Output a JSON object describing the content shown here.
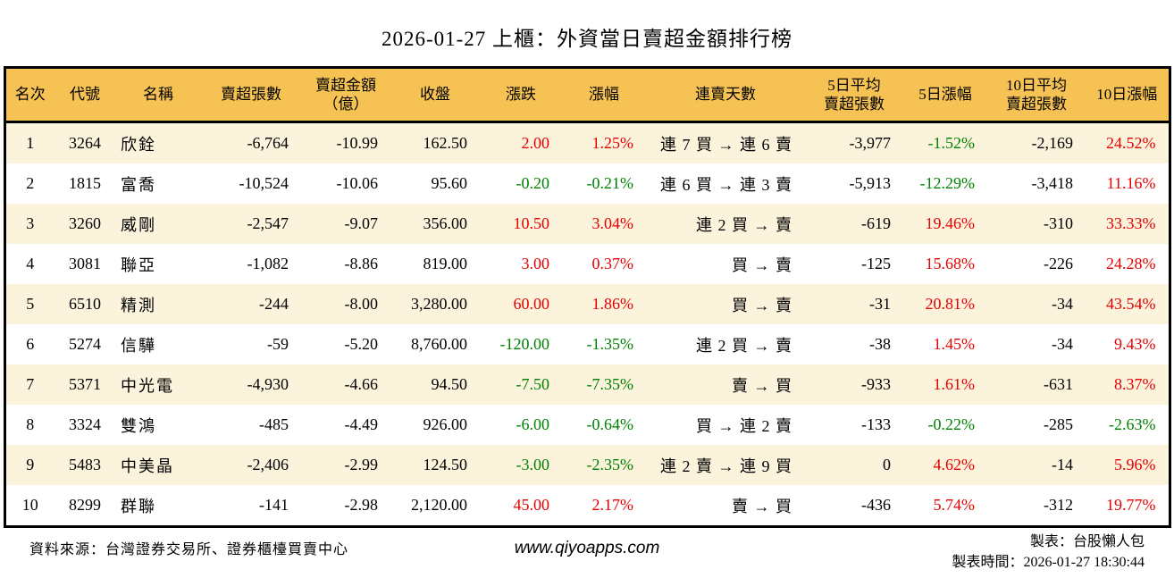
{
  "title": "2026-01-27 上櫃：外資當日賣超金額排行榜",
  "colors": {
    "positive_red": "#e60000",
    "negative_green": "#008000",
    "header_bg": "#f6c253",
    "stripe_bg": "#fcf3dd"
  },
  "table": {
    "columns": [
      "名次",
      "代號",
      "名稱",
      "賣超張數",
      "賣超金額\n（億）",
      "收盤",
      "漲跌",
      "漲幅",
      "連賣天數",
      "5日平均\n賣超張數",
      "5日漲幅",
      "10日平均\n賣超張數",
      "10日漲幅"
    ],
    "rows": [
      {
        "rank": "1",
        "code": "3264",
        "name": "欣銓",
        "sell_volume": "-6,764",
        "sell_amount": "-10.99",
        "close": "162.50",
        "change": "2.00",
        "change_pct": "1.25%",
        "streak": "連 7 買 → 連 6 賣",
        "avg5_volume": "-3,977",
        "pct5": "-1.52%",
        "avg10_volume": "-2,169",
        "pct10": "24.52%"
      },
      {
        "rank": "2",
        "code": "1815",
        "name": "富喬",
        "sell_volume": "-10,524",
        "sell_amount": "-10.06",
        "close": "95.60",
        "change": "-0.20",
        "change_pct": "-0.21%",
        "streak": "連 6 買 → 連 3 賣",
        "avg5_volume": "-5,913",
        "pct5": "-12.29%",
        "avg10_volume": "-3,418",
        "pct10": "11.16%"
      },
      {
        "rank": "3",
        "code": "3260",
        "name": "威剛",
        "sell_volume": "-2,547",
        "sell_amount": "-9.07",
        "close": "356.00",
        "change": "10.50",
        "change_pct": "3.04%",
        "streak": "連 2 買 → 賣",
        "avg5_volume": "-619",
        "pct5": "19.46%",
        "avg10_volume": "-310",
        "pct10": "33.33%"
      },
      {
        "rank": "4",
        "code": "3081",
        "name": "聯亞",
        "sell_volume": "-1,082",
        "sell_amount": "-8.86",
        "close": "819.00",
        "change": "3.00",
        "change_pct": "0.37%",
        "streak": "買 → 賣",
        "avg5_volume": "-125",
        "pct5": "15.68%",
        "avg10_volume": "-226",
        "pct10": "24.28%"
      },
      {
        "rank": "5",
        "code": "6510",
        "name": "精測",
        "sell_volume": "-244",
        "sell_amount": "-8.00",
        "close": "3,280.00",
        "change": "60.00",
        "change_pct": "1.86%",
        "streak": "買 → 賣",
        "avg5_volume": "-31",
        "pct5": "20.81%",
        "avg10_volume": "-34",
        "pct10": "43.54%"
      },
      {
        "rank": "6",
        "code": "5274",
        "name": "信驊",
        "sell_volume": "-59",
        "sell_amount": "-5.20",
        "close": "8,760.00",
        "change": "-120.00",
        "change_pct": "-1.35%",
        "streak": "連 2 買 → 賣",
        "avg5_volume": "-38",
        "pct5": "1.45%",
        "avg10_volume": "-34",
        "pct10": "9.43%"
      },
      {
        "rank": "7",
        "code": "5371",
        "name": "中光電",
        "sell_volume": "-4,930",
        "sell_amount": "-4.66",
        "close": "94.50",
        "change": "-7.50",
        "change_pct": "-7.35%",
        "streak": "賣 → 買",
        "avg5_volume": "-933",
        "pct5": "1.61%",
        "avg10_volume": "-631",
        "pct10": "8.37%"
      },
      {
        "rank": "8",
        "code": "3324",
        "name": "雙鴻",
        "sell_volume": "-485",
        "sell_amount": "-4.49",
        "close": "926.00",
        "change": "-6.00",
        "change_pct": "-0.64%",
        "streak": "買 → 連 2 賣",
        "avg5_volume": "-133",
        "pct5": "-0.22%",
        "avg10_volume": "-285",
        "pct10": "-2.63%"
      },
      {
        "rank": "9",
        "code": "5483",
        "name": "中美晶",
        "sell_volume": "-2,406",
        "sell_amount": "-2.99",
        "close": "124.50",
        "change": "-3.00",
        "change_pct": "-2.35%",
        "streak": "連 2 賣 → 連 9 買",
        "avg5_volume": "0",
        "pct5": "4.62%",
        "avg10_volume": "-14",
        "pct10": "5.96%"
      },
      {
        "rank": "10",
        "code": "8299",
        "name": "群聯",
        "sell_volume": "-141",
        "sell_amount": "-2.98",
        "close": "2,120.00",
        "change": "45.00",
        "change_pct": "2.17%",
        "streak": "賣 → 買",
        "avg5_volume": "-436",
        "pct5": "5.74%",
        "avg10_volume": "-312",
        "pct10": "19.77%"
      }
    ]
  },
  "footer": {
    "source": "資料來源：台灣證券交易所、證券櫃檯買賣中心",
    "website": "www.qiyoapps.com",
    "maker": "製表：台股懶人包",
    "made_time": "製表時間：2026-01-27 18:30:44"
  }
}
